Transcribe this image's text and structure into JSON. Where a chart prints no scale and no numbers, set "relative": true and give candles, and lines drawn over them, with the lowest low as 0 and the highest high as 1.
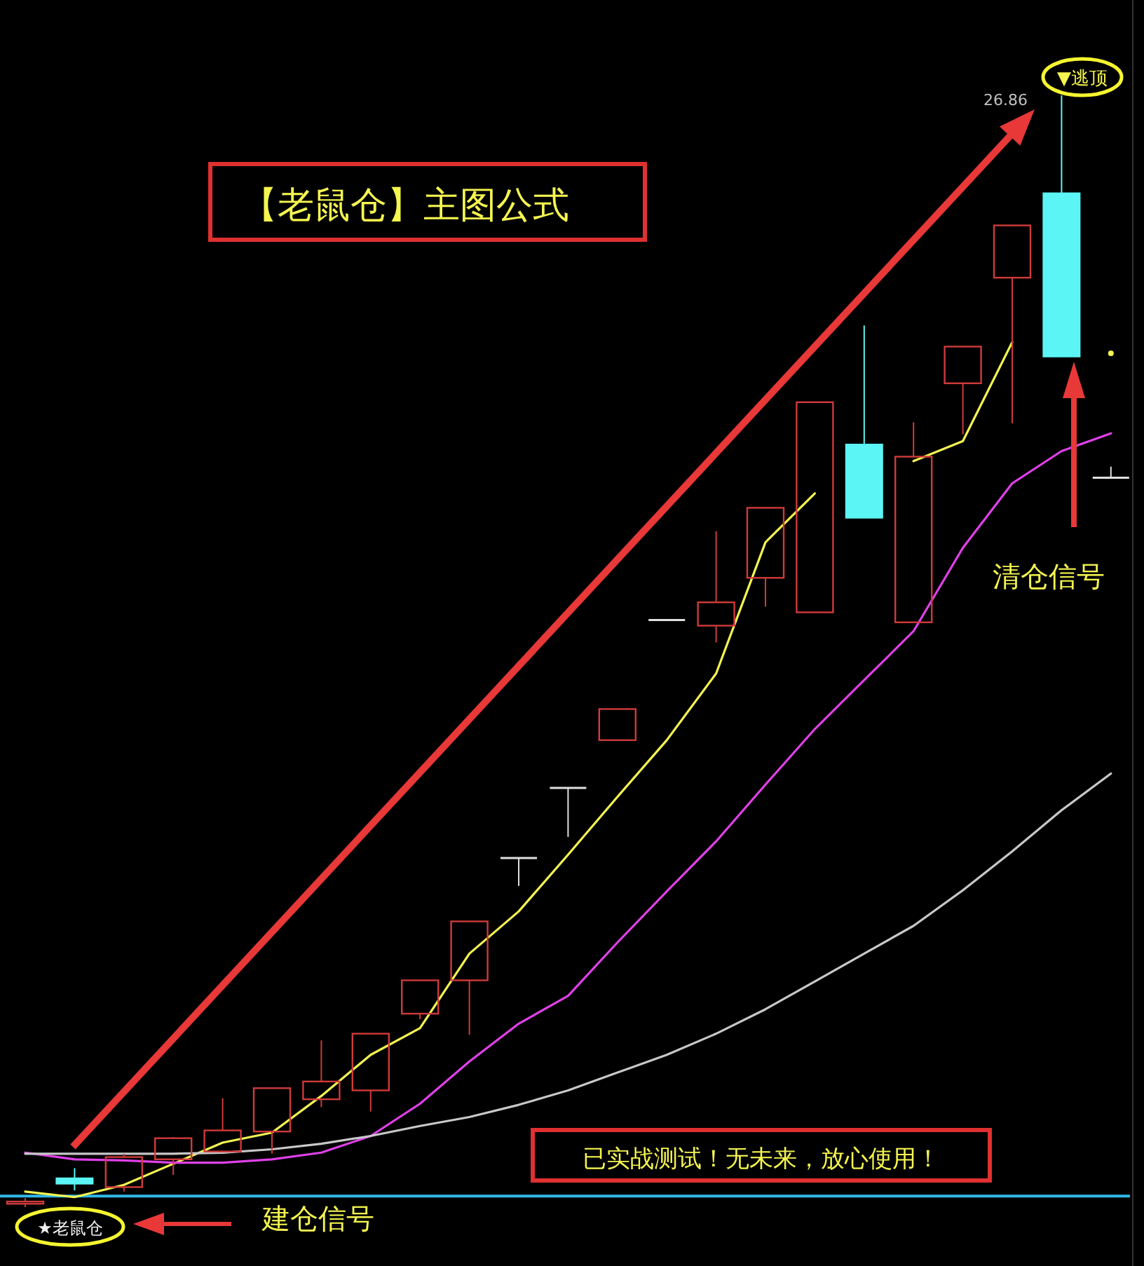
{
  "chart_data": {
    "type": "candlestick",
    "title": "【老鼠仓】主图公式",
    "relative": true,
    "categories": [
      null,
      null,
      null,
      null,
      null,
      null,
      null,
      null,
      null,
      null,
      null,
      null,
      null,
      null,
      null,
      null,
      null,
      null,
      null,
      null,
      null,
      null,
      null
    ],
    "ohlc": [
      [
        0.003,
        0.008,
        0,
        0.005
      ],
      [
        0.026,
        0.035,
        0.015,
        0.021
      ],
      [
        0.018,
        0.048,
        0.014,
        0.045
      ],
      [
        0.043,
        0.063,
        0.029,
        0.062
      ],
      [
        0.05,
        0.098,
        0.05,
        0.069
      ],
      [
        0.068,
        0.107,
        0.048,
        0.107
      ],
      [
        0.097,
        0.15,
        0.09,
        0.113
      ],
      [
        0.105,
        0.156,
        0.086,
        0.156
      ],
      [
        0.174,
        0.204,
        0.169,
        0.204
      ],
      [
        0.204,
        0.257,
        0.155,
        0.257
      ],
      [
        0.314,
        0.314,
        0.289,
        0.314
      ],
      [
        0.377,
        0.377,
        0.333,
        0.377
      ],
      [
        0.42,
        0.448,
        0.42,
        0.448
      ],
      [
        0.528,
        0.528,
        0.528,
        0.528
      ],
      [
        0.523,
        0.608,
        0.508,
        0.544
      ],
      [
        0.566,
        0.629,
        0.54,
        0.629
      ],
      [
        0.535,
        0.724,
        0.535,
        0.724
      ],
      [
        0.686,
        0.793,
        0.62,
        0.62
      ],
      [
        0.526,
        0.706,
        0.526,
        0.675
      ],
      [
        0.741,
        0.774,
        0.695,
        0.774
      ],
      [
        0.836,
        0.883,
        0.705,
        0.883
      ],
      [
        0.912,
        1,
        0.765,
        0.765
      ],
      [
        0.656,
        0.666,
        0.656,
        0.656
      ]
    ],
    "colors": [
      "#d03a3a",
      "#5cf5f5",
      "#d03a3a",
      "#d03a3a",
      "#d03a3a",
      "#d03a3a",
      "#d03a3a",
      "#d03a3a",
      "#d03a3a",
      "#d03a3a",
      "#e0e0e0",
      "#e0e0e0",
      "#d03a3a",
      "#e0e0e0",
      "#d03a3a",
      "#d03a3a",
      "#d03a3a",
      "#5cf5f5",
      "#d03a3a",
      "#d03a3a",
      "#d03a3a",
      "#5cf5f5",
      "#e0e0e0"
    ],
    "series": [
      {
        "type": "line",
        "color": "#f5f550",
        "values": [
          0.014,
          0.009,
          0.02,
          0.039,
          0.058,
          0.067,
          0.1,
          0.137,
          0.161,
          0.228,
          0.266,
          0.317,
          0.369,
          0.42,
          0.48,
          0.598,
          0.642,
          null,
          0.671,
          0.689,
          0.778,
          null,
          0.768
        ]
      },
      {
        "type": "line",
        "color": "#e040e8",
        "values": [
          0.049,
          0.043,
          0.042,
          0.04,
          0.04,
          0.043,
          0.049,
          0.064,
          0.093,
          0.131,
          0.165,
          0.19,
          0.238,
          0.284,
          0.329,
          0.38,
          0.43,
          0.474,
          0.518,
          0.593,
          0.651,
          0.68,
          0.696
        ]
      },
      {
        "type": "line",
        "color": "#c8c8c8",
        "values": [
          0.048,
          0.048,
          0.048,
          0.048,
          0.049,
          0.052,
          0.057,
          0.064,
          0.073,
          0.081,
          0.092,
          0.105,
          0.121,
          0.137,
          0.156,
          0.178,
          0.203,
          0.228,
          0.253,
          0.285,
          0.32,
          0.357,
          0.39
        ]
      }
    ],
    "ref_lines": [
      {
        "axis": "y",
        "value": 0.01,
        "color": "#30b8e8"
      }
    ],
    "annotations": [
      "26.86",
      "▼逃顶",
      "★老鼠仓",
      "建仓信号",
      "清仓信号",
      "已实战测试！无未来，放心使用！"
    ]
  }
}
